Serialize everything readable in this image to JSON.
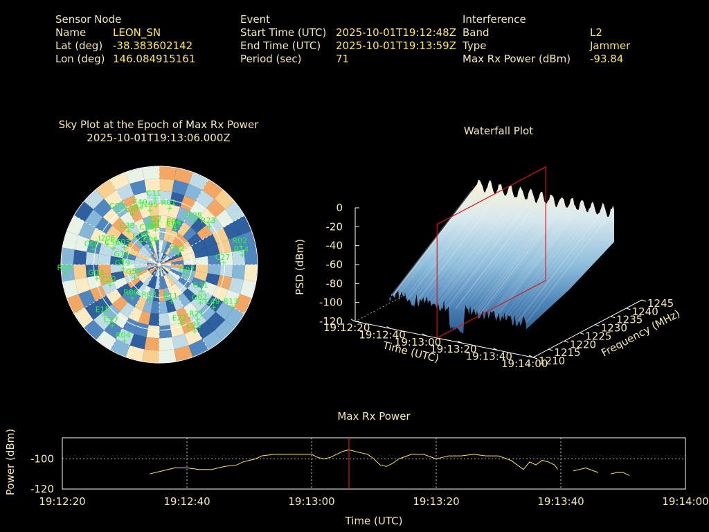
{
  "info": {
    "sensor": {
      "header": "Sensor Node",
      "rows": [
        {
          "label": "Name",
          "value": "LEON_SN"
        },
        {
          "label": "Lat (deg)",
          "value": "-38.383602142"
        },
        {
          "label": "Lon (deg)",
          "value": "146.084915161"
        }
      ]
    },
    "event": {
      "header": "Event",
      "rows": [
        {
          "label": "Start Time (UTC)",
          "value": "2025-10-01T19:12:48Z"
        },
        {
          "label": "End Time (UTC)",
          "value": "2025-10-01T19:13:59Z"
        },
        {
          "label": "Period (sec)",
          "value": "71"
        }
      ]
    },
    "interference": {
      "header": "Interference",
      "rows": [
        {
          "label": "Band",
          "value": "L2"
        },
        {
          "label": "Type",
          "value": "Jammer"
        },
        {
          "label": "Max Rx Power (dBm)",
          "value": "-93.84"
        }
      ]
    }
  },
  "colors": {
    "label": "#f5e9b0",
    "value": "#ffe94a",
    "sat": "#22ff22",
    "marker": "#e01010",
    "line": "#ffee33"
  },
  "chart_data": [
    {
      "type": "scatter",
      "title": "Sky Plot at the Epoch of Max Rx Power",
      "subtitle": "2025-10-01T19:13:06.000Z",
      "satellites": [
        {
          "id": "C07",
          "az": 322,
          "el": 27
        },
        {
          "id": "C40",
          "az": 342,
          "el": 34
        },
        {
          "id": "I195",
          "az": 350,
          "el": 38
        },
        {
          "id": "E30",
          "az": 332,
          "el": 36
        },
        {
          "id": "C11",
          "az": 356,
          "el": 28
        },
        {
          "id": "R01",
          "az": 10,
          "el": 36
        },
        {
          "id": "C52",
          "az": 354,
          "el": 52
        },
        {
          "id": "R23",
          "az": 52,
          "el": 31
        },
        {
          "id": "C38",
          "az": 317,
          "el": 47
        },
        {
          "id": "C29",
          "az": 340,
          "el": 58
        },
        {
          "id": "E01",
          "az": 353,
          "el": 57
        },
        {
          "id": "E09",
          "az": 24,
          "el": 54
        },
        {
          "id": "E04",
          "az": 22,
          "el": 52
        },
        {
          "id": "C03",
          "az": 296,
          "el": 53
        },
        {
          "id": "I198",
          "az": 38,
          "el": 38
        },
        {
          "id": "C09",
          "az": 322,
          "el": 62
        },
        {
          "id": "C06",
          "az": 338,
          "el": 70
        },
        {
          "id": "I206",
          "az": 292,
          "el": 37
        },
        {
          "id": "C60",
          "az": 283,
          "el": 26
        },
        {
          "id": "C56",
          "az": 290,
          "el": 44
        },
        {
          "id": "C02",
          "az": 60,
          "el": 70
        },
        {
          "id": "G14",
          "az": 278,
          "el": 55
        },
        {
          "id": "G19",
          "az": 264,
          "el": 56
        },
        {
          "id": "R02",
          "az": 77,
          "el": 12
        },
        {
          "id": "R14",
          "az": 83,
          "el": 12
        },
        {
          "id": "C27",
          "az": 88,
          "el": 30
        },
        {
          "id": "G07",
          "az": 110,
          "el": 62
        },
        {
          "id": "G31",
          "az": 122,
          "el": 44
        },
        {
          "id": "G02",
          "az": 133,
          "el": 38
        },
        {
          "id": "R05",
          "az": 265,
          "el": 2
        },
        {
          "id": "G03",
          "az": 258,
          "el": 30
        },
        {
          "id": "C22",
          "az": 248,
          "el": 40
        },
        {
          "id": "G50",
          "az": 244,
          "el": 64
        },
        {
          "id": "R08",
          "az": 220,
          "el": 50
        },
        {
          "id": "R03",
          "az": 195,
          "el": 56
        },
        {
          "id": "R11",
          "az": 162,
          "el": 54
        },
        {
          "id": "C49",
          "az": 128,
          "el": 26
        },
        {
          "id": "R13",
          "az": 120,
          "el": 12
        },
        {
          "id": "E15",
          "az": 228,
          "el": 20
        },
        {
          "id": "C27",
          "az": 218,
          "el": 18
        },
        {
          "id": "C25",
          "az": 152,
          "el": 20
        },
        {
          "id": "R21",
          "az": 145,
          "el": 28
        },
        {
          "id": "R04",
          "az": 205,
          "el": 12
        },
        {
          "id": "E22",
          "az": 160,
          "el": 32
        }
      ]
    },
    {
      "type": "area",
      "title": "Waterfall Plot",
      "xlabel": "Time (UTC)",
      "ylabel": "Frequency (MHz)",
      "zlabel": "PSD (dBm)",
      "time_ticks": [
        "19:12:20",
        "19:12:40",
        "19:13:00",
        "19:13:20",
        "19:13:40",
        "19:14:00"
      ],
      "freq_ticks": [
        1210,
        1215,
        1220,
        1225,
        1230,
        1235,
        1240,
        1245
      ],
      "psd_ticks": [
        0,
        -20,
        -40,
        -60,
        -80,
        -100,
        -120
      ],
      "zlim": [
        -120,
        0
      ],
      "marker_time": "19:13:06"
    },
    {
      "type": "line",
      "title": "Max Rx Power",
      "xlabel": "Time (UTC)",
      "ylabel": "Power (dBm)",
      "x_ticks": [
        "19:12:20",
        "19:12:40",
        "19:13:00",
        "19:13:20",
        "19:13:40",
        "19:14:00"
      ],
      "y_ticks": [
        -100,
        -120
      ],
      "xlim_sec": [
        0,
        100
      ],
      "ylim": [
        -120,
        -86
      ],
      "marker_sec": 46,
      "grid": true,
      "series": [
        {
          "segments": [
            [
              [
                14,
                -110
              ],
              [
                16,
                -108
              ],
              [
                18,
                -106
              ],
              [
                20,
                -106
              ],
              [
                22,
                -107
              ],
              [
                24,
                -107
              ],
              [
                26,
                -105
              ],
              [
                28,
                -104
              ],
              [
                29,
                -102
              ],
              [
                30,
                -101
              ],
              [
                31,
                -100
              ],
              [
                32,
                -98
              ],
              [
                34,
                -97
              ],
              [
                36,
                -97
              ],
              [
                38,
                -97
              ],
              [
                40,
                -97
              ],
              [
                41,
                -99
              ],
              [
                42,
                -100
              ],
              [
                43,
                -99
              ],
              [
                44,
                -97
              ],
              [
                45,
                -95
              ],
              [
                46,
                -94
              ],
              [
                48,
                -96
              ],
              [
                49,
                -97
              ],
              [
                50,
                -100
              ],
              [
                51,
                -104
              ],
              [
                52,
                -105
              ],
              [
                53,
                -103
              ],
              [
                54,
                -100
              ],
              [
                56,
                -97
              ],
              [
                58,
                -97
              ],
              [
                60,
                -100
              ],
              [
                61,
                -99
              ],
              [
                62,
                -98
              ],
              [
                64,
                -98
              ],
              [
                66,
                -97
              ],
              [
                68,
                -98
              ],
              [
                70,
                -98
              ],
              [
                72,
                -101
              ],
              [
                73,
                -104
              ],
              [
                74,
                -107
              ],
              [
                75,
                -102
              ],
              [
                76,
                -104
              ],
              [
                77,
                -101
              ],
              [
                78,
                -102
              ],
              [
                79,
                -104
              ],
              [
                79.5,
                -107
              ]
            ],
            [
              [
                82,
                -108
              ],
              [
                83,
                -107
              ],
              [
                84,
                -106
              ],
              [
                86,
                -109
              ]
            ],
            [
              [
                88,
                -110
              ],
              [
                89,
                -109
              ],
              [
                90,
                -109
              ],
              [
                91,
                -111
              ]
            ]
          ]
        }
      ]
    }
  ]
}
